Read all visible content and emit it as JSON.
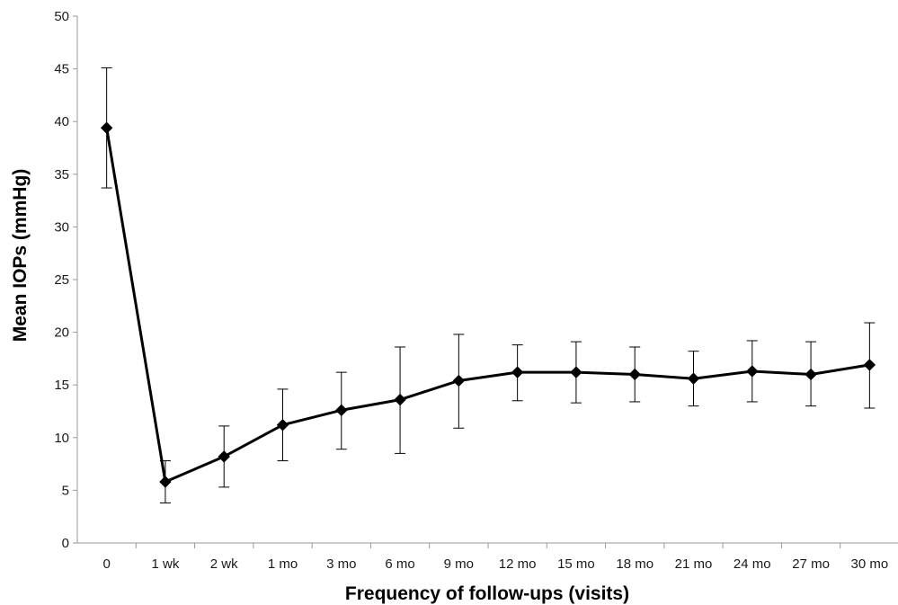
{
  "chart_data": {
    "type": "line",
    "title": "",
    "xlabel": "Frequency of follow-ups (visits)",
    "ylabel": "Mean IOPs (mmHg)",
    "categories": [
      "0",
      "1 wk",
      "2 wk",
      "1 mo",
      "3 mo",
      "6 mo",
      "9 mo",
      "12 mo",
      "15 mo",
      "18 mo",
      "21 mo",
      "24 mo",
      "27 mo",
      "30 mo"
    ],
    "series": [
      {
        "values": [
          39.4,
          5.8,
          8.2,
          11.2,
          12.6,
          13.6,
          15.4,
          16.2,
          16.2,
          16.0,
          15.6,
          16.3,
          16.0,
          16.9
        ],
        "error_low": [
          33.7,
          3.8,
          5.3,
          7.8,
          8.9,
          8.5,
          10.9,
          13.5,
          13.3,
          13.4,
          13.0,
          13.4,
          13.0,
          12.8
        ],
        "error_high": [
          45.1,
          7.8,
          11.1,
          14.6,
          16.2,
          18.6,
          19.8,
          18.8,
          19.1,
          18.6,
          18.2,
          19.2,
          19.1,
          20.9
        ]
      }
    ],
    "ylim": [
      0,
      50
    ],
    "yticks": [
      0,
      5,
      10,
      15,
      20,
      25,
      30,
      35,
      40,
      45,
      50
    ],
    "grid": false,
    "legend": "none",
    "line_color": "#000000",
    "marker": "diamond"
  }
}
